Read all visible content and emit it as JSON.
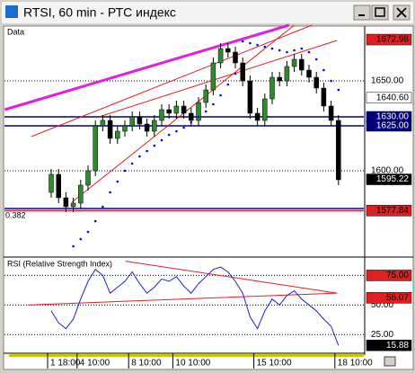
{
  "window": {
    "title": "RTSI, 60 min - РТС индекс"
  },
  "chart_data": [
    {
      "type": "candlestick",
      "panel_label": "Data",
      "categories": [
        "1 18:00",
        null,
        null,
        null,
        "4 10:00",
        null,
        null,
        null,
        null,
        null,
        null,
        "8 10:00",
        null,
        null,
        null,
        null,
        null,
        "10 10:00",
        null,
        null,
        null,
        null,
        null,
        null,
        null,
        null,
        null,
        null,
        "15 10:00",
        null,
        null,
        null,
        null,
        null,
        null,
        null,
        null,
        null,
        null,
        "18 10:00"
      ],
      "open": [
        1588,
        1598,
        1585,
        1580,
        1582,
        1592,
        1600,
        1625,
        1628,
        1618,
        1622,
        1625,
        1630,
        1626,
        1622,
        1628,
        1634,
        1632,
        1636,
        1632,
        1628,
        1638,
        1645,
        1660,
        1668,
        1666,
        1660,
        1650,
        1632,
        1628,
        1640,
        1652,
        1650,
        1658,
        1662,
        1656,
        1652,
        1646,
        1636,
        1628
      ],
      "high": [
        1601,
        1601,
        1588,
        1585,
        1595,
        1603,
        1628,
        1631,
        1631,
        1625,
        1628,
        1633,
        1633,
        1629,
        1631,
        1637,
        1637,
        1639,
        1639,
        1635,
        1641,
        1648,
        1663,
        1671,
        1671,
        1669,
        1663,
        1653,
        1635,
        1643,
        1655,
        1655,
        1661,
        1665,
        1665,
        1659,
        1655,
        1649,
        1639,
        1631
      ],
      "low": [
        1585,
        1582,
        1577,
        1577,
        1579,
        1589,
        1597,
        1622,
        1615,
        1615,
        1619,
        1622,
        1623,
        1619,
        1619,
        1625,
        1629,
        1629,
        1629,
        1625,
        1625,
        1635,
        1642,
        1657,
        1663,
        1657,
        1647,
        1629,
        1625,
        1625,
        1637,
        1647,
        1647,
        1655,
        1653,
        1649,
        1643,
        1633,
        1625,
        1592
      ],
      "close": [
        1598,
        1585,
        1580,
        1582,
        1592,
        1600,
        1625,
        1628,
        1618,
        1622,
        1625,
        1630,
        1626,
        1622,
        1628,
        1634,
        1632,
        1636,
        1632,
        1628,
        1638,
        1645,
        1660,
        1668,
        1666,
        1660,
        1650,
        1632,
        1628,
        1640,
        1652,
        1650,
        1658,
        1662,
        1656,
        1652,
        1646,
        1636,
        1628,
        1595
      ],
      "up_color": "#2e8b2e",
      "down_color": "#000000",
      "sar": {
        "color": "#0000ff",
        "values": [
          null,
          null,
          null,
          1558,
          1562,
          1566,
          1572,
          1580,
          1588,
          1594,
          1600,
          1604,
          1608,
          1611,
          1614,
          1617,
          1620,
          1622,
          1624,
          1627,
          1630,
          1633,
          1637,
          1642,
          1648,
          1654,
          1672,
          1671,
          1670,
          1669,
          1668,
          1667,
          1666,
          1667,
          1668,
          1666,
          1662,
          1656,
          1650,
          1645
        ]
      },
      "trendlines": [
        {
          "color": "#e020e0",
          "width": 3,
          "points": [
            [
              -6.3,
              1634
            ],
            [
              32.3,
              1681
            ]
          ]
        },
        {
          "color": "#e02020",
          "width": 1,
          "points": [
            [
              -2.7,
              1619
            ],
            [
              35.4,
              1681
            ]
          ]
        },
        {
          "color": "#e02020",
          "width": 1,
          "points": [
            [
              2.8,
              1582.5
            ],
            [
              33,
              1681
            ]
          ]
        },
        {
          "color": "#e02020",
          "width": 1,
          "points": [
            [
              6.5,
              1630
            ],
            [
              38.8,
              1672.5
            ]
          ]
        }
      ],
      "levels": [
        {
          "value": 1630,
          "color": "#000080"
        },
        {
          "value": 1625,
          "color": "#000080"
        },
        {
          "value": 1579,
          "color": "#0000c0"
        },
        {
          "value": 1577.84,
          "color": "#e02020",
          "label": "0.382"
        }
      ],
      "ylim": [
        1552.5,
        1680
      ],
      "yticks": [
        {
          "value": 1600,
          "label": "1600.00"
        },
        {
          "value": 1650,
          "label": "1650.00"
        }
      ],
      "price_tags": [
        {
          "value": 1672.98,
          "bg": "#e02020",
          "fg": "#000000"
        },
        {
          "value": 1640.6,
          "label": "1640.60",
          "bg": "#ffffff",
          "fg": "#000000"
        },
        {
          "value": 1630,
          "label": "1630.00",
          "bg": "#000080",
          "fg": "#ffffff"
        },
        {
          "value": 1625,
          "label": "1625.00",
          "bg": "#000080",
          "fg": "#ffffff"
        },
        {
          "value": 1595.22,
          "bg": "#000000",
          "fg": "#ffffff"
        },
        {
          "value": 1577.84,
          "bg": "#e02020",
          "fg": "#000000"
        }
      ]
    },
    {
      "type": "line",
      "panel_label": "RSI (Relative Strength Index)",
      "color": "#2020d0",
      "values": [
        45,
        35,
        30,
        38,
        55,
        70,
        80,
        75,
        60,
        65,
        70,
        78,
        68,
        60,
        65,
        72,
        70,
        74,
        66,
        60,
        68,
        74,
        80,
        82,
        78,
        70,
        60,
        40,
        30,
        45,
        55,
        50,
        58,
        62,
        55,
        50,
        45,
        38,
        32,
        15.88
      ],
      "trendlines": [
        {
          "color": "#e02020",
          "width": 1,
          "points": [
            [
              -3.2,
              50
            ],
            [
              38.8,
              60
            ]
          ]
        },
        {
          "color": "#e02020",
          "width": 1,
          "points": [
            [
              10.1,
              87
            ],
            [
              38.8,
              60
            ]
          ]
        }
      ],
      "ylim": [
        10,
        89
      ],
      "yticks": [
        {
          "value": 25,
          "label": "25.00"
        },
        {
          "value": 50,
          "label": "50.00"
        },
        {
          "value": 75,
          "label": "75.00"
        }
      ],
      "price_tags": [
        {
          "value": 75,
          "label": "75.00",
          "bg": "#e02020",
          "fg": "#000000"
        },
        {
          "value": 56.07,
          "bg": "#e02020",
          "fg": "#000000"
        },
        {
          "value": 15.88,
          "bg": "#000000",
          "fg": "#ffffff"
        }
      ]
    }
  ]
}
